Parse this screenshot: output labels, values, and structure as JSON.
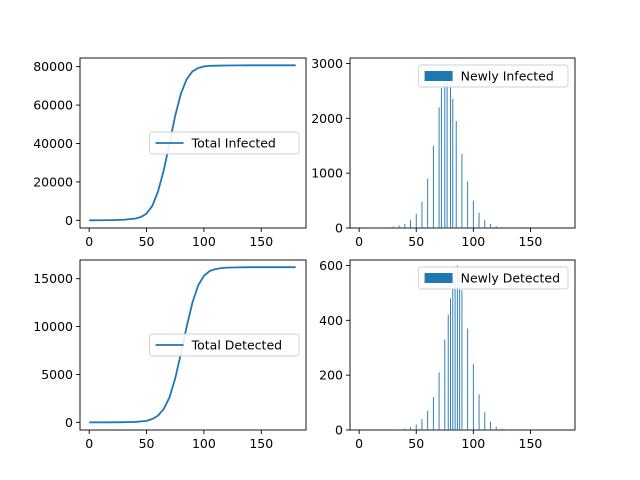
{
  "colors": {
    "series": "#1f77b4"
  },
  "chart_data": [
    {
      "type": "line",
      "title": "",
      "xlabel": "",
      "ylabel": "",
      "xlim": [
        -8,
        189
      ],
      "ylim": [
        -4000,
        84500
      ],
      "xticks": [
        0,
        50,
        100,
        150
      ],
      "yticks": [
        0,
        20000,
        40000,
        60000,
        80000
      ],
      "legend": {
        "placement": "center-right",
        "kind": "line"
      },
      "series": [
        {
          "name": "Total Infected",
          "x": [
            0,
            10,
            20,
            30,
            40,
            45,
            50,
            55,
            60,
            65,
            70,
            75,
            80,
            85,
            90,
            95,
            100,
            105,
            110,
            120,
            130,
            140,
            150,
            160,
            170,
            180
          ],
          "values": [
            0,
            20,
            100,
            300,
            900,
            1700,
            3500,
            7500,
            15000,
            26000,
            40000,
            54500,
            66000,
            73500,
            77500,
            79300,
            80100,
            80400,
            80500,
            80600,
            80650,
            80700,
            80700,
            80700,
            80700,
            80700
          ]
        }
      ]
    },
    {
      "type": "bar",
      "title": "",
      "xlabel": "",
      "ylabel": "",
      "xlim": [
        -8,
        189
      ],
      "ylim": [
        0,
        3100
      ],
      "xticks": [
        0,
        50,
        100,
        150
      ],
      "yticks": [
        0,
        1000,
        2000,
        3000
      ],
      "legend": {
        "placement": "top-right",
        "kind": "patch"
      },
      "series": [
        {
          "name": "Newly Infected",
          "x": [
            10,
            15,
            20,
            25,
            30,
            35,
            40,
            45,
            50,
            55,
            60,
            65,
            70,
            72,
            75,
            77,
            80,
            82,
            85,
            90,
            95,
            100,
            105,
            110,
            115,
            120,
            125,
            130,
            135,
            140
          ],
          "values": [
            2,
            4,
            8,
            15,
            25,
            45,
            75,
            140,
            260,
            480,
            900,
            1500,
            2200,
            2550,
            2900,
            2870,
            2600,
            2350,
            1950,
            1350,
            850,
            500,
            280,
            150,
            75,
            35,
            15,
            6,
            2,
            1
          ]
        }
      ]
    },
    {
      "type": "line",
      "title": "",
      "xlabel": "",
      "ylabel": "",
      "xlim": [
        -8,
        189
      ],
      "ylim": [
        -800,
        16950
      ],
      "xticks": [
        0,
        50,
        100,
        150
      ],
      "yticks": [
        0,
        5000,
        10000,
        15000
      ],
      "legend": {
        "placement": "center-right",
        "kind": "line"
      },
      "series": [
        {
          "name": "Total Detected",
          "x": [
            0,
            20,
            30,
            40,
            50,
            55,
            60,
            65,
            70,
            75,
            80,
            85,
            90,
            95,
            100,
            105,
            110,
            115,
            120,
            130,
            140,
            150,
            160,
            170,
            180
          ],
          "values": [
            0,
            5,
            15,
            40,
            150,
            350,
            700,
            1400,
            2600,
            4600,
            7200,
            10000,
            12500,
            14300,
            15300,
            15800,
            16000,
            16100,
            16150,
            16180,
            16200,
            16200,
            16200,
            16200,
            16200
          ]
        }
      ]
    },
    {
      "type": "bar",
      "title": "",
      "xlabel": "",
      "ylabel": "",
      "xlim": [
        -8,
        189
      ],
      "ylim": [
        0,
        620
      ],
      "xticks": [
        0,
        50,
        100,
        150
      ],
      "yticks": [
        0,
        200,
        400,
        600
      ],
      "legend": {
        "placement": "top-right",
        "kind": "patch"
      },
      "series": [
        {
          "name": "Newly Detected",
          "x": [
            30,
            35,
            40,
            45,
            50,
            55,
            60,
            65,
            70,
            75,
            78,
            80,
            82,
            84,
            86,
            88,
            90,
            95,
            100,
            105,
            110,
            115,
            120,
            125,
            130,
            135
          ],
          "values": [
            1,
            2,
            5,
            10,
            20,
            40,
            70,
            120,
            210,
            330,
            420,
            480,
            540,
            590,
            600,
            560,
            510,
            370,
            240,
            130,
            65,
            30,
            12,
            5,
            2,
            1
          ]
        }
      ]
    }
  ]
}
